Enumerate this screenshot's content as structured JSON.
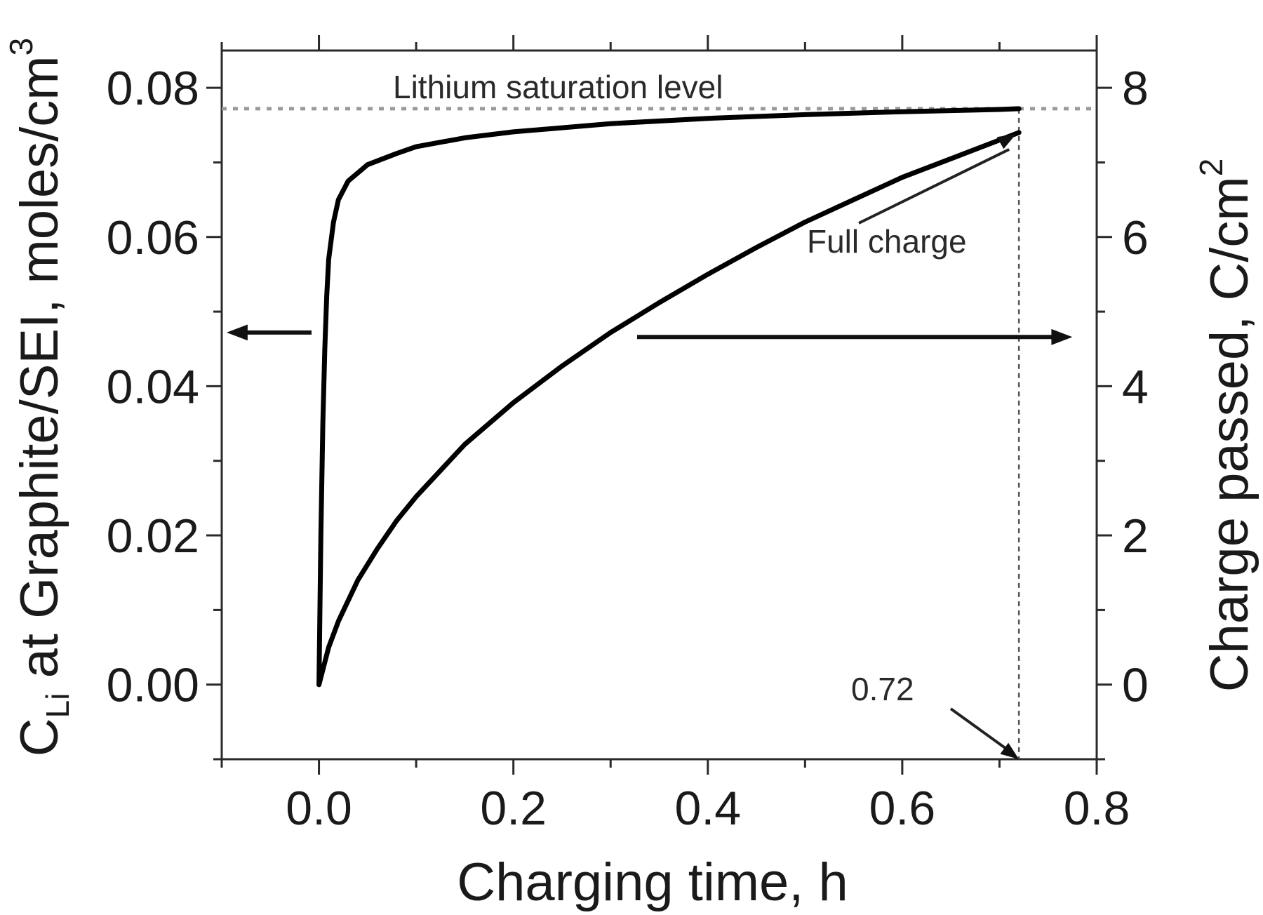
{
  "chart_data": {
    "type": "line",
    "title": "",
    "xlabel": "Charging time, h",
    "ylabel_left": "C",
    "ylabel_left_sub": "Li",
    "ylabel_left_rest": " at Graphite/SEI, moles/cm",
    "ylabel_left_sup": "3",
    "ylabel_right": "Charge passed, C/cm",
    "ylabel_right_sup": "2",
    "xlim": [
      -0.1,
      0.8
    ],
    "ylim_left": [
      -0.01,
      0.085
    ],
    "ylim_right": [
      -1,
      8.5
    ],
    "x_ticks": [
      "0.0",
      "0.2",
      "0.4",
      "0.6",
      "0.8"
    ],
    "x_tick_values": [
      0.0,
      0.2,
      0.4,
      0.6,
      0.8
    ],
    "y_left_ticks": [
      "0.00",
      "0.02",
      "0.04",
      "0.06",
      "0.08"
    ],
    "y_left_tick_values": [
      0.0,
      0.02,
      0.04,
      0.06,
      0.08
    ],
    "y_right_ticks": [
      "0",
      "2",
      "4",
      "6",
      "8"
    ],
    "y_right_tick_values": [
      0,
      2,
      4,
      6,
      8
    ],
    "grid": false,
    "series": [
      {
        "axis": "left",
        "x": [
          0.0,
          0.002,
          0.004,
          0.006,
          0.008,
          0.01,
          0.015,
          0.02,
          0.03,
          0.05,
          0.08,
          0.1,
          0.15,
          0.2,
          0.3,
          0.4,
          0.5,
          0.6,
          0.7,
          0.72
        ],
        "y": [
          0.0,
          0.02,
          0.035,
          0.045,
          0.052,
          0.057,
          0.062,
          0.065,
          0.0675,
          0.0697,
          0.0712,
          0.0721,
          0.0733,
          0.0741,
          0.0752,
          0.0759,
          0.0764,
          0.0768,
          0.0771,
          0.0772
        ]
      },
      {
        "axis": "right",
        "x": [
          0.0,
          0.01,
          0.02,
          0.04,
          0.06,
          0.08,
          0.1,
          0.15,
          0.2,
          0.25,
          0.3,
          0.35,
          0.4,
          0.45,
          0.5,
          0.55,
          0.6,
          0.65,
          0.7,
          0.72
        ],
        "y": [
          0.0,
          0.5,
          0.85,
          1.4,
          1.82,
          2.2,
          2.52,
          3.22,
          3.78,
          4.27,
          4.72,
          5.12,
          5.5,
          5.86,
          6.2,
          6.5,
          6.8,
          7.05,
          7.3,
          7.4
        ]
      }
    ],
    "annotations": {
      "saturation_label": "Lithium saturation level",
      "saturation_level": 0.0772,
      "full_charge_label": "Full charge",
      "full_charge_time": 0.72,
      "full_charge_time_label": "0.72"
    }
  }
}
